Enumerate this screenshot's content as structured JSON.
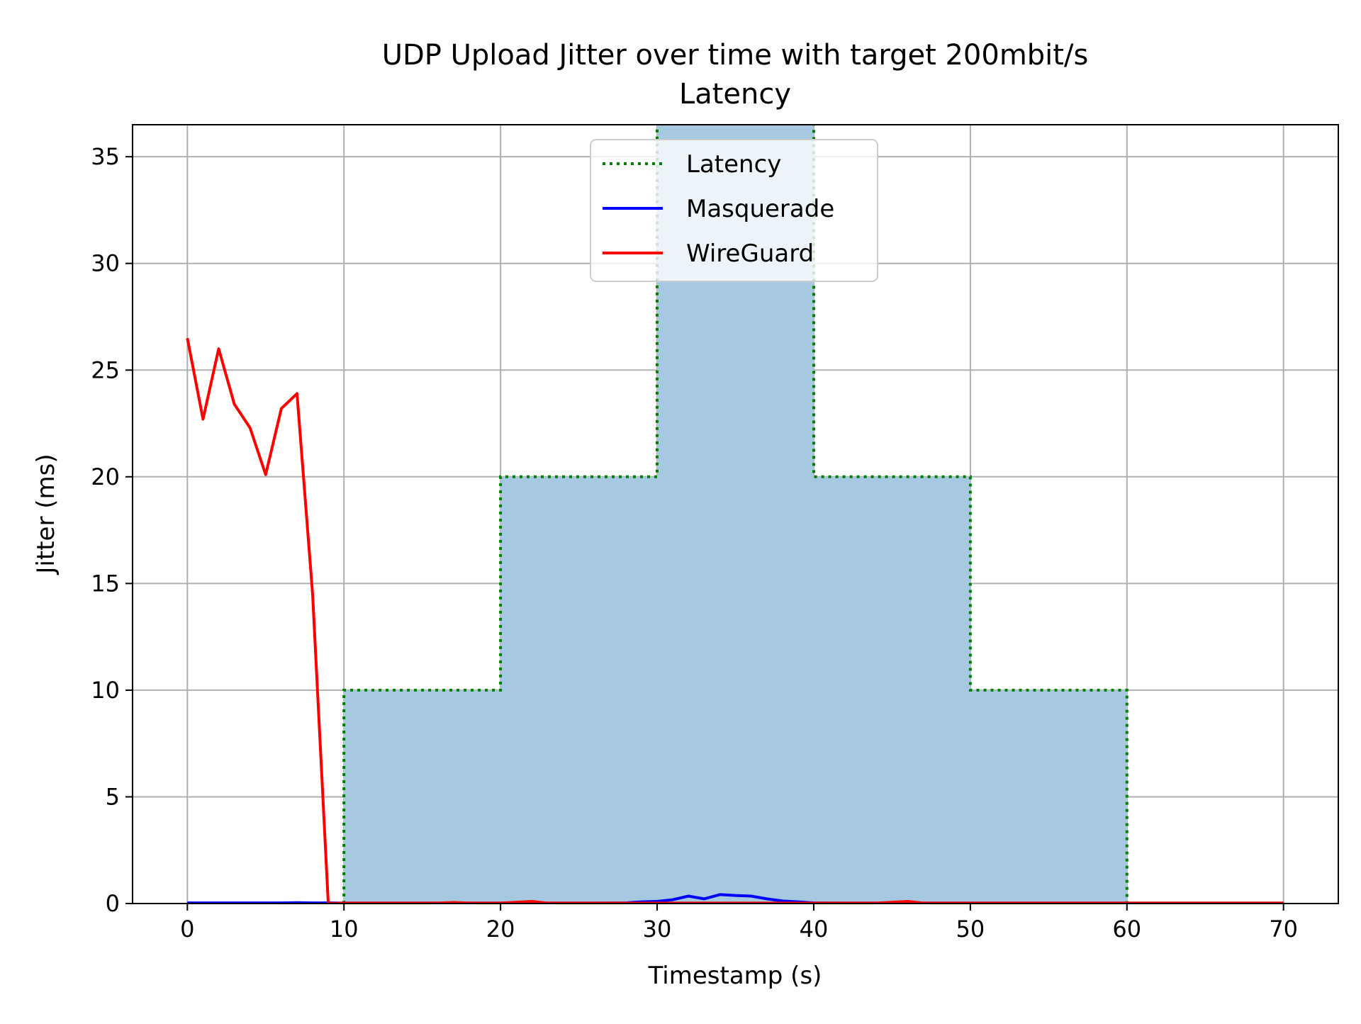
{
  "chart_data": {
    "type": "line",
    "title": "UDP Upload Jitter over time with target 200mbit/s",
    "subtitle": "Latency",
    "xlabel": "Timestamp (s)",
    "ylabel": "Jitter (ms)",
    "xlim": [
      -3.5,
      73.5
    ],
    "ylim": [
      0,
      36.5
    ],
    "x_ticks": [
      0,
      10,
      20,
      30,
      40,
      50,
      60,
      70
    ],
    "y_ticks": [
      0,
      5,
      10,
      15,
      20,
      25,
      30,
      35
    ],
    "grid": true,
    "legend_position": "top-center",
    "latency_profile": {
      "name": "Latency",
      "color": "#008000",
      "fill_color": "#a6c8e0",
      "style": "dotted",
      "steps": [
        {
          "x_start": 10,
          "x_end": 20,
          "y": 10
        },
        {
          "x_start": 20,
          "x_end": 30,
          "y": 20
        },
        {
          "x_start": 30,
          "x_end": 40,
          "y": 40
        },
        {
          "x_start": 40,
          "x_end": 50,
          "y": 20
        },
        {
          "x_start": 50,
          "x_end": 60,
          "y": 10
        }
      ]
    },
    "series": [
      {
        "name": "Masquerade",
        "color": "#0000ff",
        "x": [
          0,
          1,
          2,
          3,
          4,
          5,
          6,
          7,
          8,
          9,
          10,
          12,
          14,
          16,
          18,
          20,
          22,
          24,
          26,
          28,
          29,
          30,
          31,
          32,
          33,
          34,
          35,
          36,
          37,
          38,
          39,
          40,
          42,
          44,
          46,
          48,
          50,
          52,
          54,
          56,
          58,
          60,
          62,
          64,
          66,
          68,
          70
        ],
        "y": [
          0.03,
          0.03,
          0.03,
          0.03,
          0.03,
          0.03,
          0.03,
          0.04,
          0.03,
          0.03,
          0.02,
          0.02,
          0.02,
          0.02,
          0.02,
          0.02,
          0.02,
          0.02,
          0.02,
          0.03,
          0.08,
          0.1,
          0.18,
          0.35,
          0.22,
          0.42,
          0.38,
          0.35,
          0.22,
          0.12,
          0.08,
          0.03,
          0.02,
          0.02,
          0.02,
          0.02,
          0.02,
          0.02,
          0.02,
          0.02,
          0.02,
          0.02,
          0.02,
          0.02,
          0.02,
          0.02,
          0.02
        ]
      },
      {
        "name": "WireGuard",
        "color": "#ff0000",
        "x": [
          0,
          1,
          2,
          3,
          4,
          5,
          6,
          7,
          8,
          9,
          10,
          12,
          14,
          16,
          17,
          18,
          20,
          22,
          23,
          24,
          26,
          28,
          30,
          32,
          34,
          36,
          38,
          40,
          42,
          44,
          46,
          47,
          48,
          50,
          52,
          54,
          56,
          58,
          60,
          62,
          64,
          66,
          68,
          70
        ],
        "y": [
          26.5,
          22.7,
          26.0,
          23.4,
          22.3,
          20.1,
          23.2,
          23.9,
          14.5,
          0.0,
          0.02,
          0.02,
          0.02,
          0.02,
          0.05,
          0.02,
          0.02,
          0.1,
          0.02,
          0.02,
          0.02,
          0.02,
          0.02,
          0.02,
          0.02,
          0.02,
          0.02,
          0.02,
          0.02,
          0.02,
          0.1,
          0.02,
          0.02,
          0.02,
          0.02,
          0.02,
          0.02,
          0.02,
          0.02,
          0.02,
          0.02,
          0.02,
          0.02,
          0.02
        ]
      }
    ]
  }
}
